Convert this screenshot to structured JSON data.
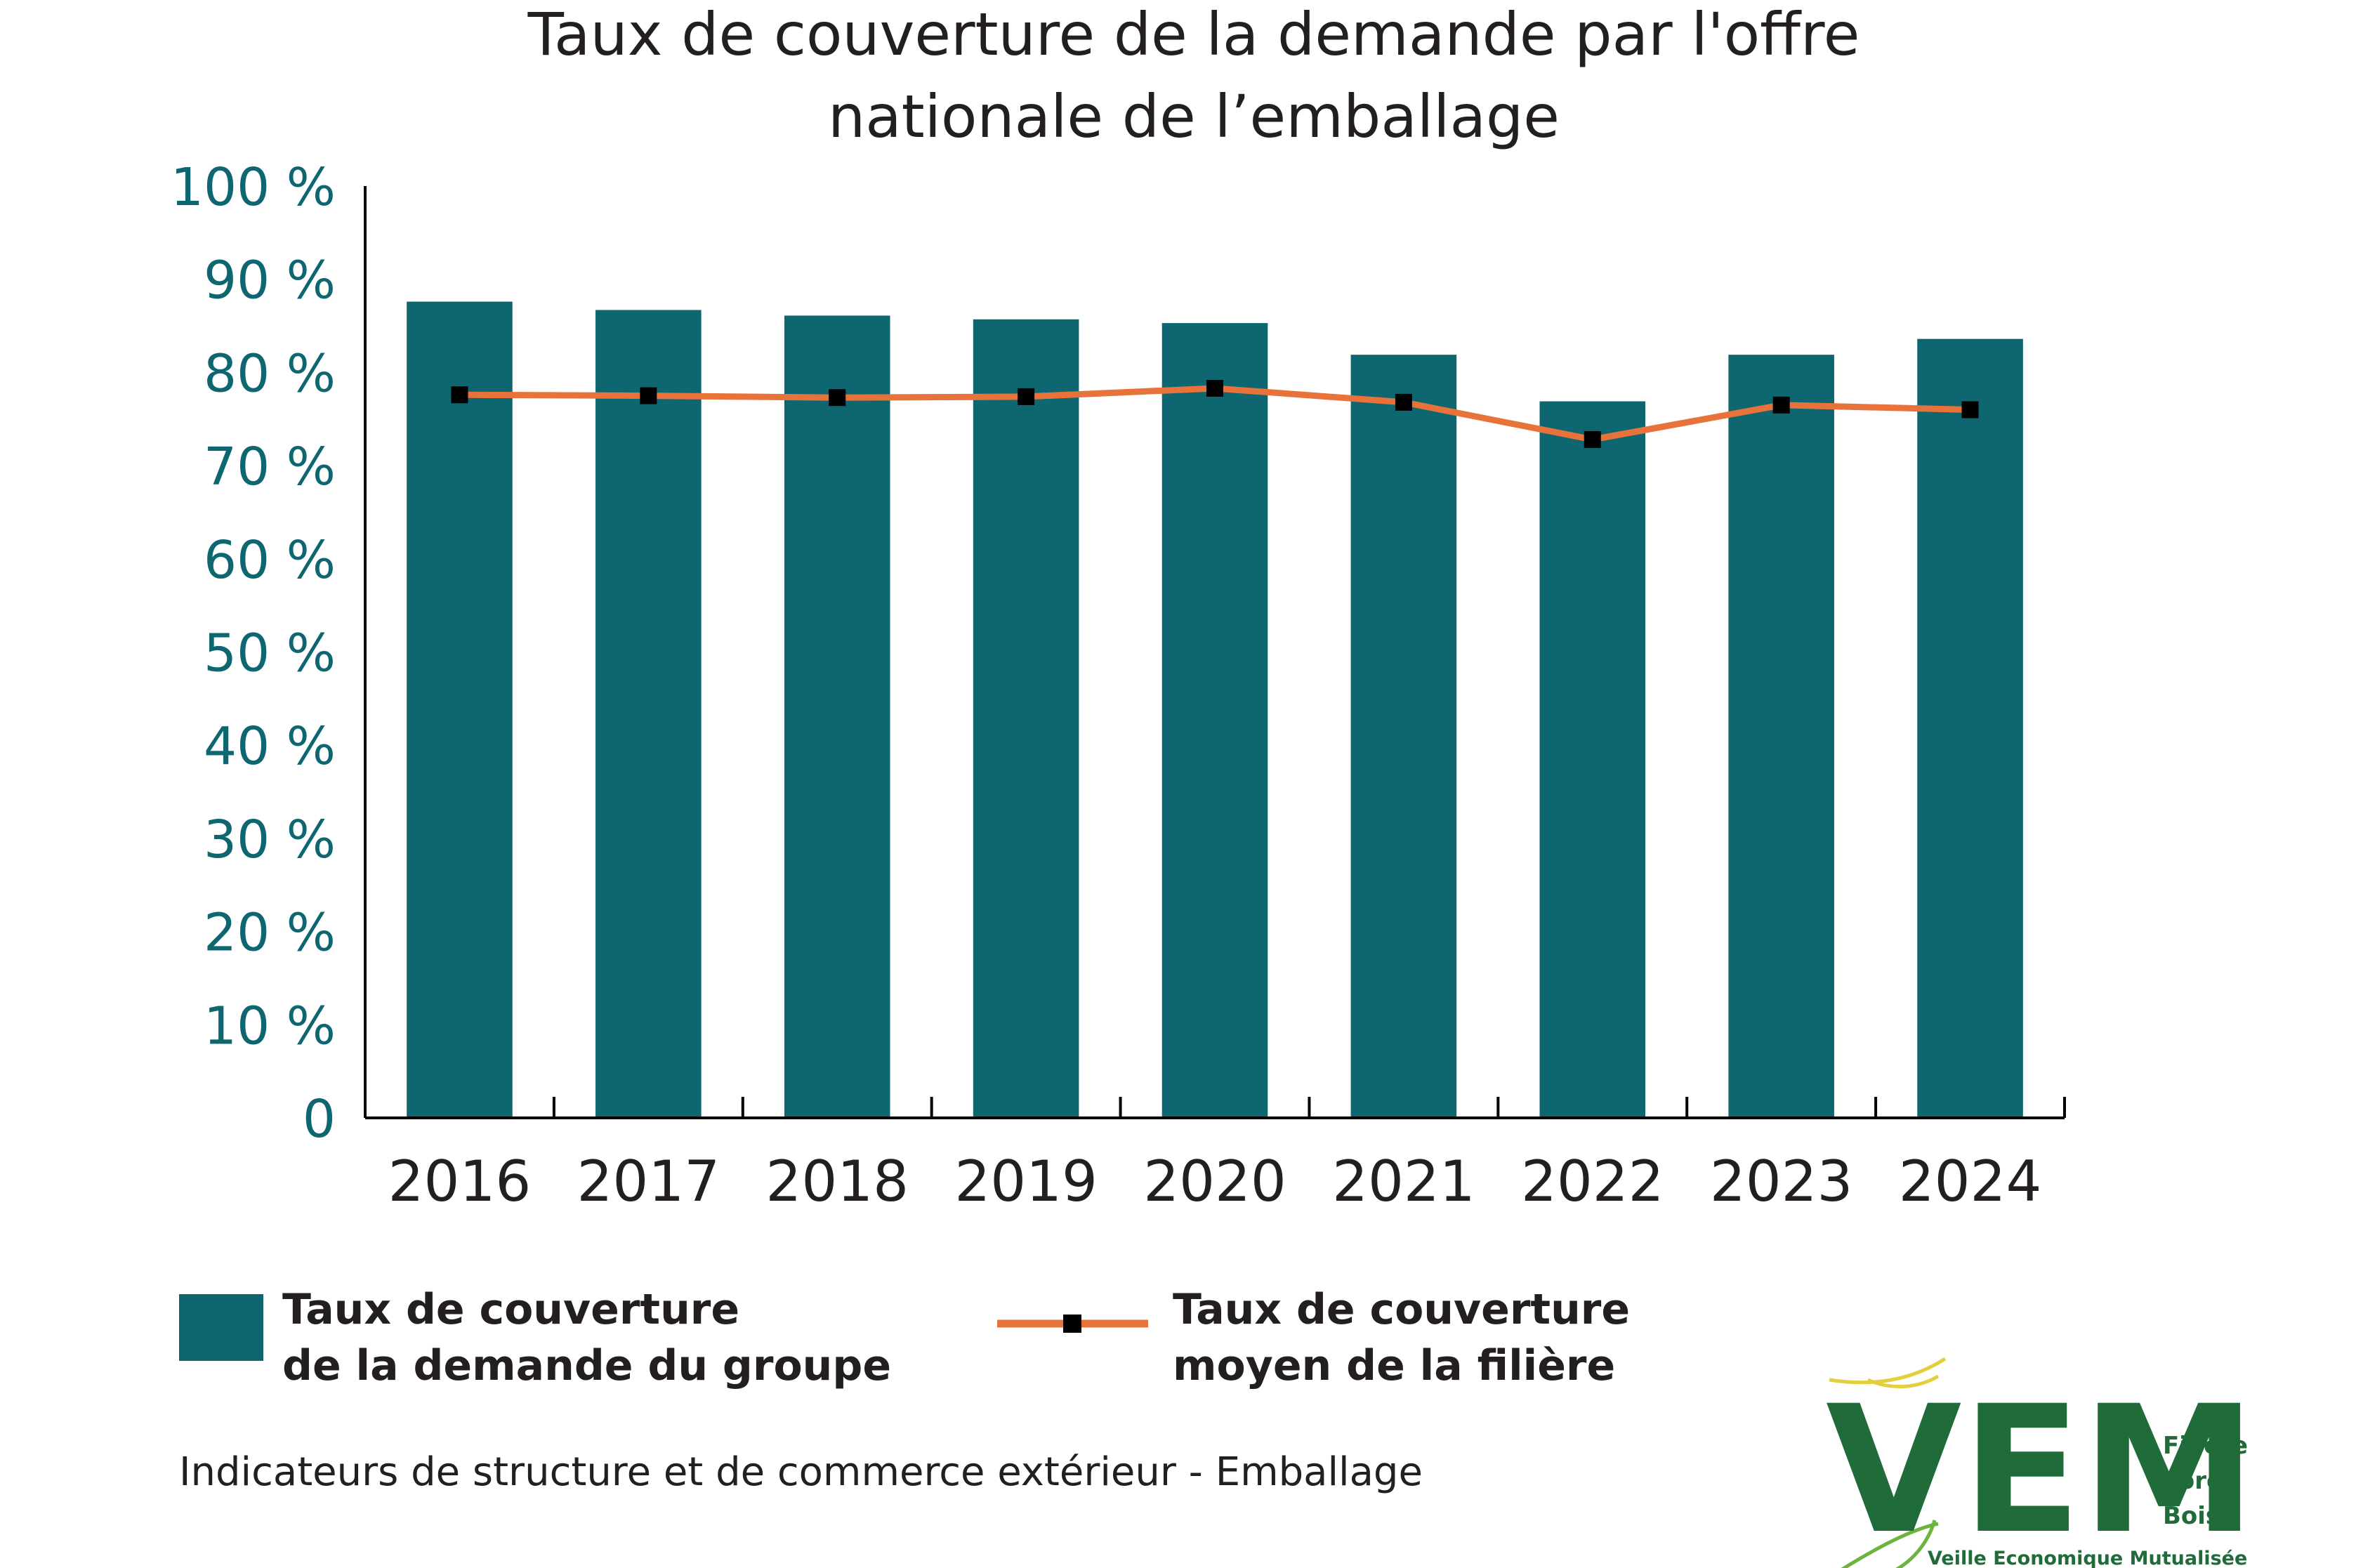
{
  "title_lines": [
    "Taux de couverture de la demande par l'offre",
    "nationale de l’emballage"
  ],
  "source": "Indicateurs de structure et de commerce extérieur - Emballage",
  "colors": {
    "bar": "#0e6671",
    "line": "#e8733a",
    "marker": "#000000",
    "axis": "#000000",
    "ytick": "#0e6671",
    "logo": "#1f6b3a",
    "logo_arc": "#e3cf3d"
  },
  "legend": {
    "bar_label": [
      "Taux de couverture",
      "de la demande du groupe"
    ],
    "line_label": [
      "Taux de couverture",
      "moyen de la filière"
    ]
  },
  "logo": {
    "letters": "VEM",
    "side_lines": [
      "Filière",
      "Forêt",
      "Bois"
    ],
    "tagline": "Veille Economique Mutualisée"
  },
  "chart_data": {
    "type": "bar",
    "title": "Taux de couverture de la demande par l'offre nationale de l’emballage",
    "categories": [
      "2016",
      "2017",
      "2018",
      "2019",
      "2020",
      "2021",
      "2022",
      "2023",
      "2024"
    ],
    "series": [
      {
        "name": "Taux de couverture de la demande du groupe",
        "type": "bar",
        "values": [
          87.6,
          86.7,
          86.1,
          85.7,
          85.3,
          81.9,
          76.9,
          81.9,
          83.6
        ]
      },
      {
        "name": "Taux de couverture moyen de la filière",
        "type": "line",
        "values": [
          77.6,
          77.5,
          77.3,
          77.4,
          78.3,
          76.8,
          72.8,
          76.5,
          76.0
        ]
      }
    ],
    "ylim": [
      0,
      100
    ],
    "yticks": [
      "0",
      "10 %",
      "20 %",
      "30 %",
      "40 %",
      "50 %",
      "60 %",
      "70 %",
      "80 %",
      "90 %",
      "100 %"
    ],
    "grid": false,
    "legend_position": "bottom"
  }
}
